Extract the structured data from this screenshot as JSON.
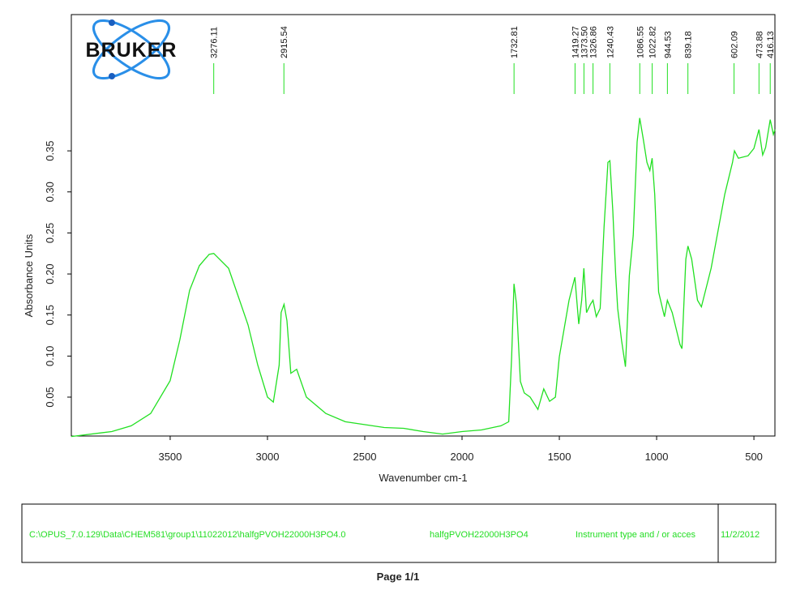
{
  "logo": "BRUKER",
  "chart_data": {
    "type": "line",
    "xlabel": "Wavenumber cm-1",
    "ylabel": "Absorbance Units",
    "xlim": [
      4008,
      392
    ],
    "ylim": [
      0.0026,
      0.516
    ],
    "xticks": [
      3500,
      3000,
      2500,
      2000,
      1500,
      1000,
      500
    ],
    "yticks": [
      0.05,
      0.1,
      0.15,
      0.2,
      0.25,
      0.3,
      0.35
    ],
    "ytick_labels": [
      "0.05",
      "0.10",
      "0.15",
      "0.20",
      "0.25",
      "0.30",
      "0.35"
    ],
    "color": "#22e022",
    "peaks": [
      {
        "value": 3276.11,
        "label": "3276.11"
      },
      {
        "value": 2915.54,
        "label": "2915.54"
      },
      {
        "value": 1732.81,
        "label": "1732.81"
      },
      {
        "value": 1419.27,
        "label": "1419.27"
      },
      {
        "value": 1373.5,
        "label": "1373.50"
      },
      {
        "value": 1326.86,
        "label": "1326.86"
      },
      {
        "value": 1240.43,
        "label": "1240.43"
      },
      {
        "value": 1086.55,
        "label": "1086.55"
      },
      {
        "value": 1022.82,
        "label": "1022.82"
      },
      {
        "value": 944.53,
        "label": "944.53"
      },
      {
        "value": 839.18,
        "label": "839.18"
      },
      {
        "value": 602.09,
        "label": "602.09"
      },
      {
        "value": 473.88,
        "label": "473.88"
      },
      {
        "value": 416.13,
        "label": "416.13"
      }
    ],
    "x": [
      4008,
      3800,
      3700,
      3600,
      3500,
      3450,
      3400,
      3350,
      3300,
      3276,
      3200,
      3100,
      3050,
      3000,
      2970,
      2940,
      2930,
      2915,
      2900,
      2880,
      2850,
      2800,
      2700,
      2600,
      2400,
      2300,
      2200,
      2100,
      2000,
      1900,
      1800,
      1760,
      1745,
      1733,
      1720,
      1700,
      1680,
      1650,
      1610,
      1580,
      1550,
      1520,
      1500,
      1450,
      1420,
      1400,
      1385,
      1374,
      1360,
      1340,
      1327,
      1310,
      1290,
      1270,
      1250,
      1240,
      1225,
      1210,
      1200,
      1180,
      1160,
      1140,
      1120,
      1100,
      1087,
      1070,
      1050,
      1035,
      1023,
      1010,
      990,
      960,
      945,
      920,
      880,
      870,
      850,
      839,
      820,
      790,
      770,
      720,
      650,
      610,
      600,
      580,
      530,
      500,
      474,
      455,
      440,
      416,
      400,
      392
    ],
    "values": [
      0.002,
      0.008,
      0.015,
      0.03,
      0.07,
      0.12,
      0.18,
      0.21,
      0.224,
      0.225,
      0.207,
      0.138,
      0.089,
      0.05,
      0.044,
      0.089,
      0.153,
      0.163,
      0.143,
      0.079,
      0.084,
      0.05,
      0.03,
      0.02,
      0.013,
      0.012,
      0.008,
      0.005,
      0.008,
      0.01,
      0.015,
      0.02,
      0.099,
      0.188,
      0.163,
      0.069,
      0.055,
      0.05,
      0.035,
      0.06,
      0.045,
      0.05,
      0.099,
      0.168,
      0.196,
      0.139,
      0.168,
      0.207,
      0.153,
      0.163,
      0.168,
      0.148,
      0.158,
      0.257,
      0.336,
      0.338,
      0.277,
      0.198,
      0.158,
      0.119,
      0.087,
      0.198,
      0.247,
      0.361,
      0.39,
      0.366,
      0.336,
      0.326,
      0.341,
      0.297,
      0.178,
      0.148,
      0.168,
      0.153,
      0.114,
      0.109,
      0.218,
      0.234,
      0.218,
      0.168,
      0.16,
      0.207,
      0.297,
      0.336,
      0.35,
      0.341,
      0.344,
      0.353,
      0.376,
      0.345,
      0.354,
      0.388,
      0.37,
      0.376
    ]
  },
  "footer": {
    "cells": [
      "C:\\OPUS_7.0.129\\Data\\CHEM581\\group1\\11022012\\halfgPVOH22000H3PO4.0",
      "halfgPVOH22000H3PO4",
      "Instrument type and / or acces",
      "11/2/2012"
    ],
    "page": "Page 1/1"
  }
}
